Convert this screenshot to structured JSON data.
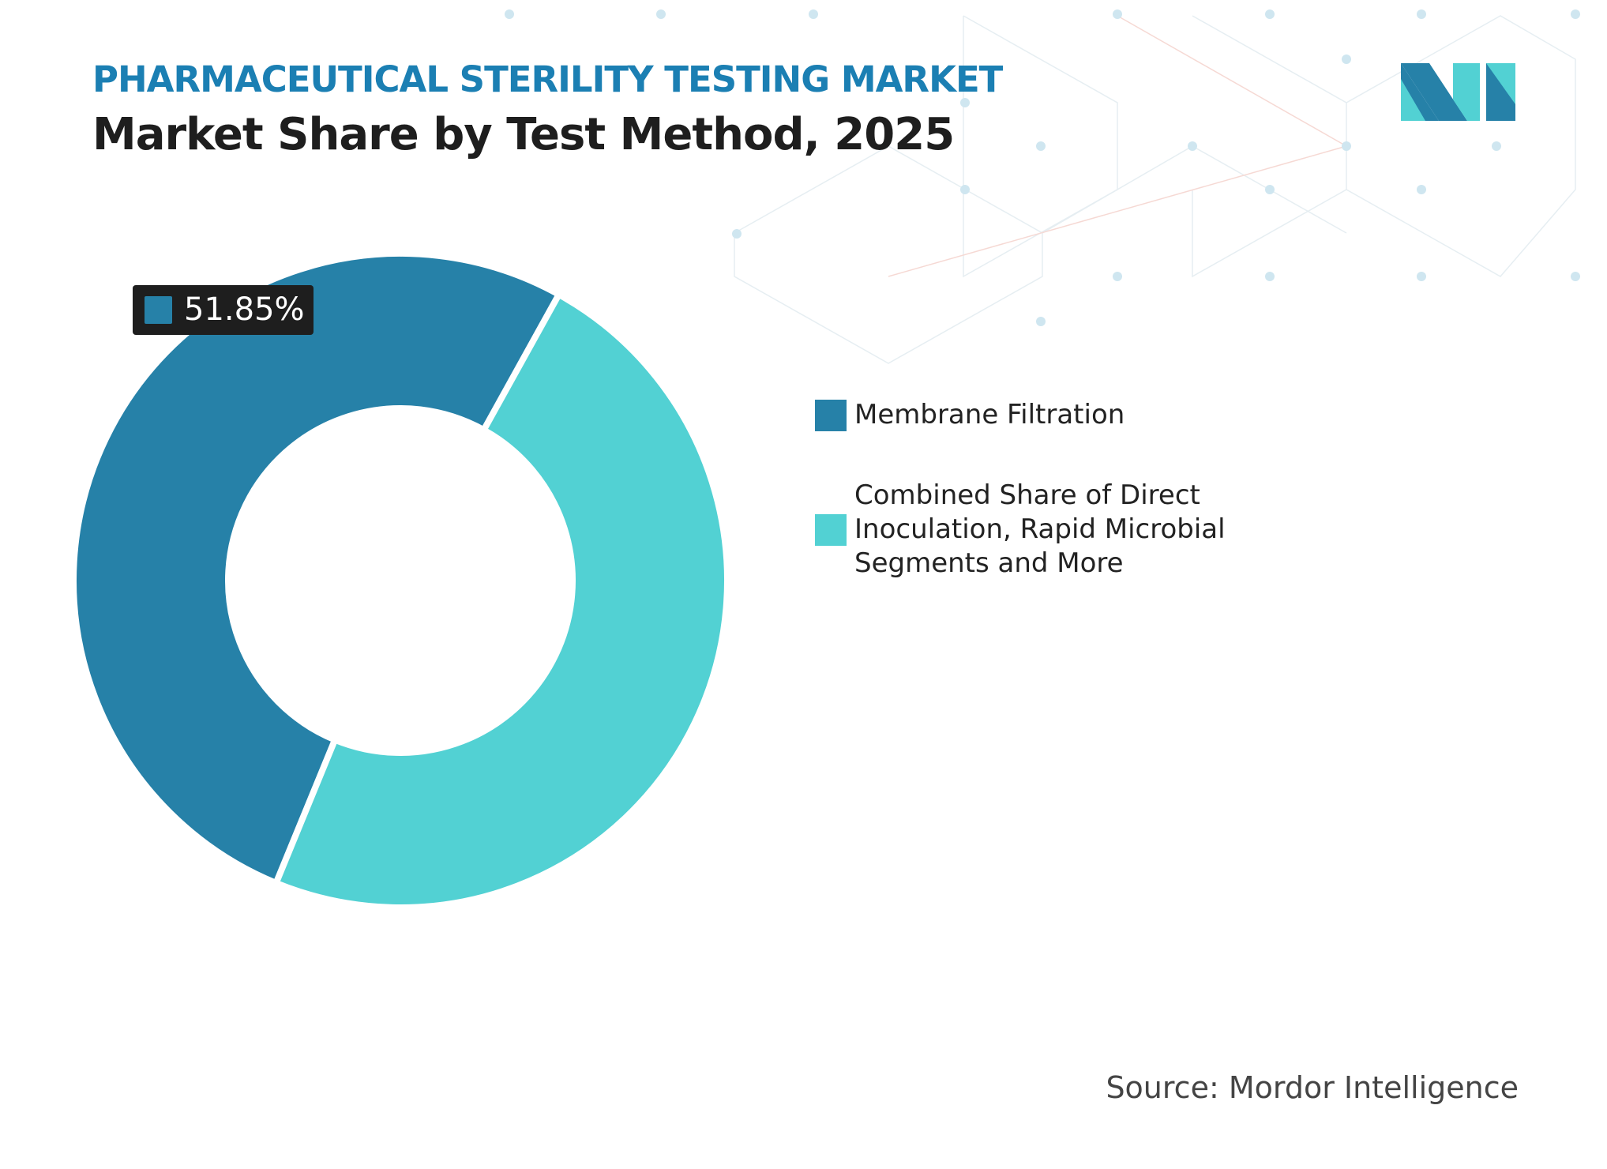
{
  "chart_data": {
    "type": "donut",
    "subtitle": "PHARMACEUTICAL STERILITY TESTING MARKET",
    "title": "Market Share by Test Method, 2025",
    "categories": [
      "Membrane Filtration",
      "Combined Share of Direct Inoculation, Rapid Microbial Segments and More"
    ],
    "values": [
      51.85,
      48.15
    ],
    "value_labels": [
      "51.85%",
      null
    ],
    "colors": [
      "#2681a8",
      "#52d1d3"
    ],
    "source": "Source: Mordor Intelligence"
  }
}
